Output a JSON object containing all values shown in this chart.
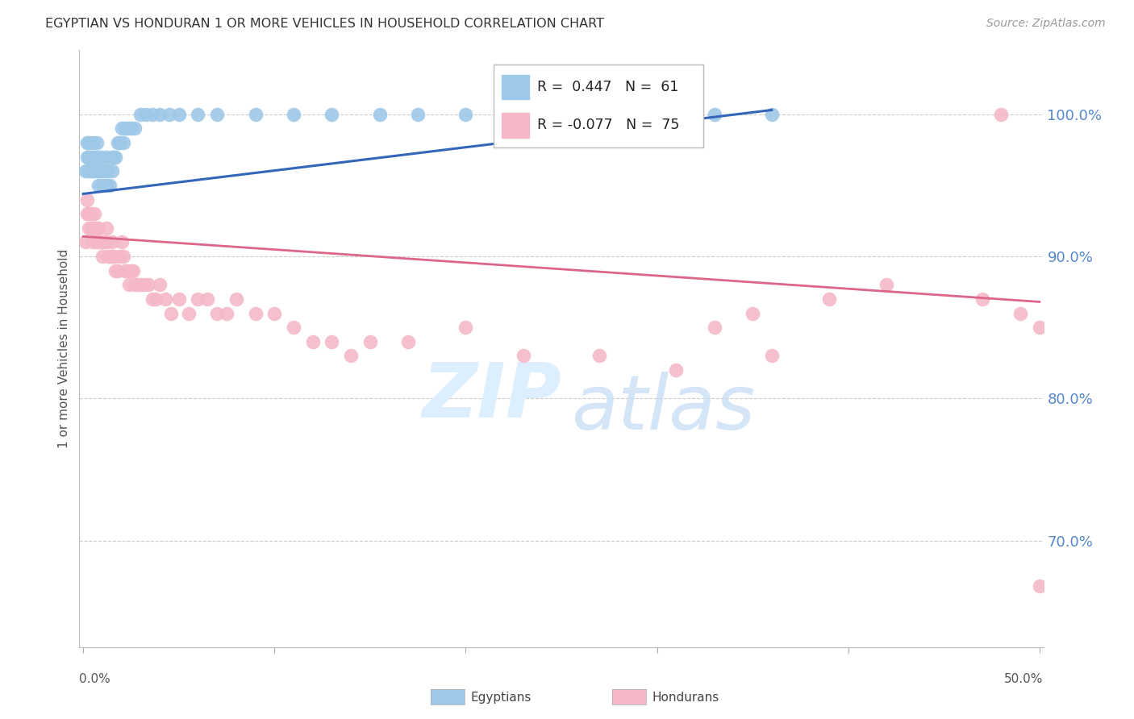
{
  "title": "EGYPTIAN VS HONDURAN 1 OR MORE VEHICLES IN HOUSEHOLD CORRELATION CHART",
  "source": "Source: ZipAtlas.com",
  "ylabel": "1 or more Vehicles in Household",
  "ytick_labels": [
    "70.0%",
    "80.0%",
    "90.0%",
    "100.0%"
  ],
  "ytick_values": [
    0.7,
    0.8,
    0.9,
    1.0
  ],
  "xlim": [
    0.0,
    0.5
  ],
  "ylim": [
    0.625,
    1.045
  ],
  "blue_color": "#9ec8e8",
  "pink_color": "#f5b8c8",
  "line_blue_color": "#3366bb",
  "line_pink_color": "#dd6688",
  "egyptians_x": [
    0.001,
    0.002,
    0.002,
    0.003,
    0.003,
    0.003,
    0.004,
    0.004,
    0.005,
    0.005,
    0.005,
    0.006,
    0.006,
    0.007,
    0.007,
    0.007,
    0.008,
    0.008,
    0.008,
    0.009,
    0.009,
    0.01,
    0.01,
    0.011,
    0.012,
    0.012,
    0.013,
    0.014,
    0.015,
    0.015,
    0.016,
    0.017,
    0.018,
    0.019,
    0.02,
    0.021,
    0.022,
    0.023,
    0.025,
    0.027,
    0.03,
    0.033,
    0.036,
    0.04,
    0.045,
    0.05,
    0.06,
    0.07,
    0.09,
    0.11,
    0.13,
    0.155,
    0.175,
    0.2,
    0.22,
    0.24,
    0.26,
    0.28,
    0.3,
    0.33,
    0.36
  ],
  "egyptians_y": [
    0.96,
    0.97,
    0.98,
    0.96,
    0.97,
    0.98,
    0.96,
    0.97,
    0.96,
    0.97,
    0.98,
    0.96,
    0.97,
    0.96,
    0.97,
    0.98,
    0.95,
    0.96,
    0.97,
    0.96,
    0.97,
    0.95,
    0.96,
    0.96,
    0.95,
    0.97,
    0.96,
    0.95,
    0.96,
    0.97,
    0.97,
    0.97,
    0.98,
    0.98,
    0.99,
    0.98,
    0.99,
    0.99,
    0.99,
    0.99,
    1.0,
    1.0,
    1.0,
    1.0,
    1.0,
    1.0,
    1.0,
    1.0,
    1.0,
    1.0,
    1.0,
    1.0,
    1.0,
    1.0,
    1.0,
    1.0,
    1.0,
    1.0,
    1.0,
    1.0,
    1.0
  ],
  "hondurans_x": [
    0.001,
    0.002,
    0.002,
    0.003,
    0.003,
    0.004,
    0.004,
    0.005,
    0.005,
    0.006,
    0.006,
    0.007,
    0.007,
    0.008,
    0.008,
    0.009,
    0.01,
    0.01,
    0.011,
    0.012,
    0.012,
    0.013,
    0.014,
    0.015,
    0.015,
    0.016,
    0.017,
    0.018,
    0.019,
    0.02,
    0.021,
    0.022,
    0.023,
    0.024,
    0.025,
    0.026,
    0.027,
    0.028,
    0.03,
    0.032,
    0.034,
    0.036,
    0.038,
    0.04,
    0.043,
    0.046,
    0.05,
    0.055,
    0.06,
    0.065,
    0.07,
    0.075,
    0.08,
    0.09,
    0.1,
    0.11,
    0.12,
    0.13,
    0.14,
    0.15,
    0.17,
    0.2,
    0.23,
    0.27,
    0.31,
    0.36,
    0.42,
    0.47,
    0.49,
    0.5,
    0.48,
    0.5,
    0.35,
    0.33,
    0.39
  ],
  "hondurans_y": [
    0.91,
    0.93,
    0.94,
    0.92,
    0.93,
    0.92,
    0.93,
    0.91,
    0.92,
    0.92,
    0.93,
    0.91,
    0.92,
    0.91,
    0.92,
    0.91,
    0.9,
    0.91,
    0.91,
    0.91,
    0.92,
    0.9,
    0.9,
    0.9,
    0.91,
    0.9,
    0.89,
    0.89,
    0.9,
    0.91,
    0.9,
    0.89,
    0.89,
    0.88,
    0.89,
    0.89,
    0.88,
    0.88,
    0.88,
    0.88,
    0.88,
    0.87,
    0.87,
    0.88,
    0.87,
    0.86,
    0.87,
    0.86,
    0.87,
    0.87,
    0.86,
    0.86,
    0.87,
    0.86,
    0.86,
    0.85,
    0.84,
    0.84,
    0.83,
    0.84,
    0.84,
    0.85,
    0.83,
    0.83,
    0.82,
    0.83,
    0.88,
    0.87,
    0.86,
    0.85,
    1.0,
    0.668,
    0.86,
    0.85,
    0.87
  ]
}
